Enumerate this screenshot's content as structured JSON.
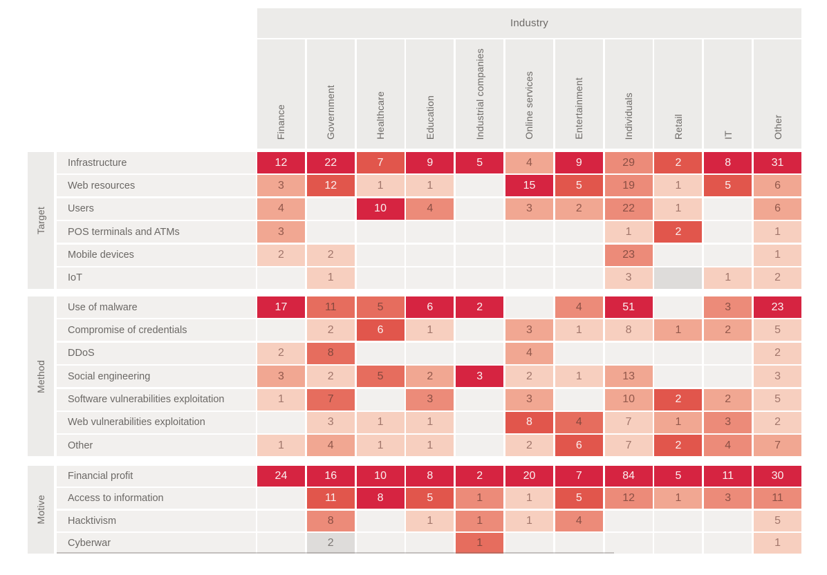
{
  "header": {
    "industry_label": "Industry"
  },
  "palette": {
    "c6": "#d62441",
    "c5": "#e1564c",
    "c4": "#e66d5e",
    "c35": "#ec8b79",
    "c3": "#f1a792",
    "c2": "#f7cfbf",
    "c1": "#f9ded1",
    "g": "#dedcda",
    "empty": "#f2f0ee",
    "header_bg": "#ecebe9",
    "label_text": "#6b6865"
  },
  "chart_data": {
    "type": "heatmap",
    "title": "Industry",
    "columns": [
      "Finance",
      "Government",
      "Healthcare",
      "Education",
      "Industrial companies",
      "Online services",
      "Entertainment",
      "Individuals",
      "Retail",
      "IT",
      "Other"
    ],
    "row_groups": [
      {
        "name": "Target",
        "rows": [
          {
            "name": "Infrastructure",
            "cells": [
              {
                "v": 12,
                "l": "c6"
              },
              {
                "v": 22,
                "l": "c6"
              },
              {
                "v": 7,
                "l": "c5"
              },
              {
                "v": 9,
                "l": "c6"
              },
              {
                "v": 5,
                "l": "c6"
              },
              {
                "v": 4,
                "l": "c3"
              },
              {
                "v": 9,
                "l": "c6"
              },
              {
                "v": 29,
                "l": "c35"
              },
              {
                "v": 2,
                "l": "c5"
              },
              {
                "v": 8,
                "l": "c6"
              },
              {
                "v": 31,
                "l": "c6"
              }
            ]
          },
          {
            "name": "Web resources",
            "cells": [
              {
                "v": 3,
                "l": "c3"
              },
              {
                "v": 12,
                "l": "c5"
              },
              {
                "v": 1,
                "l": "c2"
              },
              {
                "v": 1,
                "l": "c2"
              },
              null,
              {
                "v": 15,
                "l": "c6"
              },
              {
                "v": 5,
                "l": "c5"
              },
              {
                "v": 19,
                "l": "c35"
              },
              {
                "v": 1,
                "l": "c2"
              },
              {
                "v": 5,
                "l": "c5"
              },
              {
                "v": 6,
                "l": "c3"
              }
            ]
          },
          {
            "name": "Users",
            "cells": [
              {
                "v": 4,
                "l": "c3"
              },
              null,
              {
                "v": 10,
                "l": "c6"
              },
              {
                "v": 4,
                "l": "c35"
              },
              null,
              {
                "v": 3,
                "l": "c3"
              },
              {
                "v": 2,
                "l": "c3"
              },
              {
                "v": 22,
                "l": "c35"
              },
              {
                "v": 1,
                "l": "c2"
              },
              null,
              {
                "v": 6,
                "l": "c3"
              }
            ]
          },
          {
            "name": "POS terminals and ATMs",
            "cells": [
              {
                "v": 3,
                "l": "c3"
              },
              null,
              null,
              null,
              null,
              null,
              null,
              {
                "v": 1,
                "l": "c2"
              },
              {
                "v": 2,
                "l": "c5"
              },
              null,
              {
                "v": 1,
                "l": "c2"
              }
            ]
          },
          {
            "name": "Mobile devices",
            "cells": [
              {
                "v": 2,
                "l": "c2"
              },
              {
                "v": 2,
                "l": "c2"
              },
              null,
              null,
              null,
              null,
              null,
              {
                "v": 23,
                "l": "c35"
              },
              null,
              null,
              {
                "v": 1,
                "l": "c2"
              }
            ]
          },
          {
            "name": "IoT",
            "cells": [
              null,
              {
                "v": 1,
                "l": "c2"
              },
              null,
              null,
              null,
              null,
              null,
              {
                "v": 3,
                "l": "c2"
              },
              {
                "v": null,
                "l": "g"
              },
              {
                "v": 1,
                "l": "c2"
              },
              {
                "v": 2,
                "l": "c2"
              }
            ]
          }
        ]
      },
      {
        "name": "Method",
        "rows": [
          {
            "name": "Use of malware",
            "cells": [
              {
                "v": 17,
                "l": "c6"
              },
              {
                "v": 11,
                "l": "c4"
              },
              {
                "v": 5,
                "l": "c4"
              },
              {
                "v": 6,
                "l": "c6"
              },
              {
                "v": 2,
                "l": "c6"
              },
              null,
              {
                "v": 4,
                "l": "c35"
              },
              {
                "v": 51,
                "l": "c6"
              },
              null,
              {
                "v": 3,
                "l": "c35"
              },
              {
                "v": 23,
                "l": "c6"
              }
            ]
          },
          {
            "name": "Compromise of credentials",
            "cells": [
              null,
              {
                "v": 2,
                "l": "c2"
              },
              {
                "v": 6,
                "l": "c5"
              },
              {
                "v": 1,
                "l": "c2"
              },
              null,
              {
                "v": 3,
                "l": "c3"
              },
              {
                "v": 1,
                "l": "c2"
              },
              {
                "v": 8,
                "l": "c2"
              },
              {
                "v": 1,
                "l": "c3"
              },
              {
                "v": 2,
                "l": "c3"
              },
              {
                "v": 5,
                "l": "c2"
              }
            ]
          },
          {
            "name": "DDoS",
            "cells": [
              {
                "v": 2,
                "l": "c2"
              },
              {
                "v": 8,
                "l": "c4"
              },
              null,
              null,
              null,
              {
                "v": 4,
                "l": "c3"
              },
              null,
              null,
              null,
              null,
              {
                "v": 2,
                "l": "c2"
              }
            ]
          },
          {
            "name": "Social engineering",
            "cells": [
              {
                "v": 3,
                "l": "c3"
              },
              {
                "v": 2,
                "l": "c2"
              },
              {
                "v": 5,
                "l": "c4"
              },
              {
                "v": 2,
                "l": "c3"
              },
              {
                "v": 3,
                "l": "c6"
              },
              {
                "v": 2,
                "l": "c2"
              },
              {
                "v": 1,
                "l": "c2"
              },
              {
                "v": 13,
                "l": "c3"
              },
              null,
              null,
              {
                "v": 3,
                "l": "c2"
              }
            ]
          },
          {
            "name": "Software vulnerabilities exploitation",
            "cells": [
              {
                "v": 1,
                "l": "c2"
              },
              {
                "v": 7,
                "l": "c4"
              },
              null,
              {
                "v": 3,
                "l": "c35"
              },
              null,
              {
                "v": 3,
                "l": "c3"
              },
              null,
              {
                "v": 10,
                "l": "c3"
              },
              {
                "v": 2,
                "l": "c5"
              },
              {
                "v": 2,
                "l": "c3"
              },
              {
                "v": 5,
                "l": "c2"
              }
            ]
          },
          {
            "name": "Web vulnerabilities exploitation",
            "cells": [
              null,
              {
                "v": 3,
                "l": "c2"
              },
              {
                "v": 1,
                "l": "c2"
              },
              {
                "v": 1,
                "l": "c2"
              },
              null,
              {
                "v": 8,
                "l": "c5"
              },
              {
                "v": 4,
                "l": "c4"
              },
              {
                "v": 7,
                "l": "c2"
              },
              {
                "v": 1,
                "l": "c3"
              },
              {
                "v": 3,
                "l": "c35"
              },
              {
                "v": 2,
                "l": "c2"
              }
            ]
          },
          {
            "name": "Other",
            "cells": [
              {
                "v": 1,
                "l": "c2"
              },
              {
                "v": 4,
                "l": "c3"
              },
              {
                "v": 1,
                "l": "c2"
              },
              {
                "v": 1,
                "l": "c2"
              },
              null,
              {
                "v": 2,
                "l": "c2"
              },
              {
                "v": 6,
                "l": "c5"
              },
              {
                "v": 7,
                "l": "c2"
              },
              {
                "v": 2,
                "l": "c5"
              },
              {
                "v": 4,
                "l": "c35"
              },
              {
                "v": 7,
                "l": "c3"
              }
            ]
          }
        ]
      },
      {
        "name": "Motive",
        "rows": [
          {
            "name": "Financial profit",
            "cells": [
              {
                "v": 24,
                "l": "c6"
              },
              {
                "v": 16,
                "l": "c6"
              },
              {
                "v": 10,
                "l": "c6"
              },
              {
                "v": 8,
                "l": "c6"
              },
              {
                "v": 2,
                "l": "c6"
              },
              {
                "v": 20,
                "l": "c6"
              },
              {
                "v": 7,
                "l": "c6"
              },
              {
                "v": 84,
                "l": "c6"
              },
              {
                "v": 5,
                "l": "c6"
              },
              {
                "v": 11,
                "l": "c6"
              },
              {
                "v": 30,
                "l": "c6"
              }
            ]
          },
          {
            "name": "Access to information",
            "cells": [
              null,
              {
                "v": 11,
                "l": "c5"
              },
              {
                "v": 8,
                "l": "c6"
              },
              {
                "v": 5,
                "l": "c5"
              },
              {
                "v": 1,
                "l": "c35"
              },
              {
                "v": 1,
                "l": "c2"
              },
              {
                "v": 5,
                "l": "c5"
              },
              {
                "v": 12,
                "l": "c35"
              },
              {
                "v": 1,
                "l": "c3"
              },
              {
                "v": 3,
                "l": "c35"
              },
              {
                "v": 11,
                "l": "c35"
              }
            ]
          },
          {
            "name": "Hacktivism",
            "cells": [
              null,
              {
                "v": 8,
                "l": "c35"
              },
              null,
              {
                "v": 1,
                "l": "c2"
              },
              {
                "v": 1,
                "l": "c35"
              },
              {
                "v": 1,
                "l": "c2"
              },
              {
                "v": 4,
                "l": "c35"
              },
              null,
              null,
              null,
              {
                "v": 5,
                "l": "c2"
              }
            ]
          },
          {
            "name": "Cyberwar",
            "cells": [
              null,
              {
                "v": 2,
                "l": "g"
              },
              null,
              null,
              {
                "v": 1,
                "l": "c4"
              },
              null,
              null,
              null,
              null,
              null,
              {
                "v": 1,
                "l": "c2"
              }
            ]
          }
        ]
      }
    ]
  }
}
